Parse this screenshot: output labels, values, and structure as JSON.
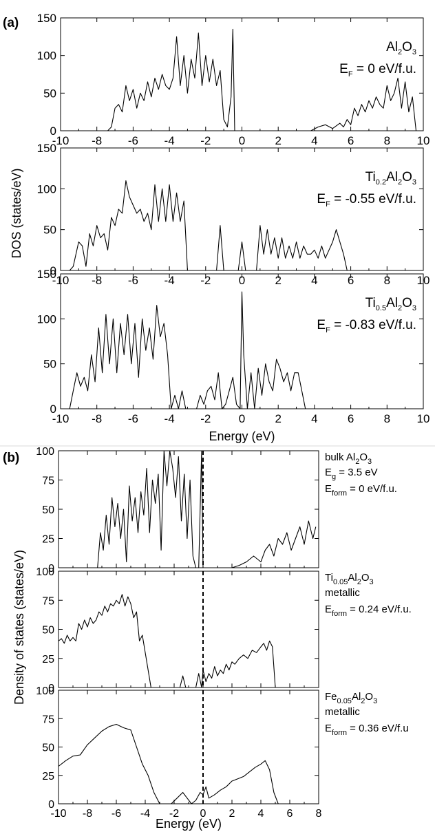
{
  "labels": {
    "panel_a": "(a)",
    "panel_b": "(b)"
  },
  "chart_data": [
    {
      "type": "line",
      "ylabel": "DOS (states/eV)",
      "xlabel": "Energy (eV)",
      "xlim": [
        -10,
        10
      ],
      "ylim": [
        0,
        150
      ],
      "xticks": [
        "-10",
        "-8",
        "-6",
        "-4",
        "-2",
        "0",
        "2",
        "4",
        "6",
        "8",
        "10"
      ],
      "yticks": [
        "0",
        "50",
        "100",
        "150"
      ],
      "panels": [
        {
          "annotation": [
            {
              "t": "Al"
            },
            {
              "t": "2",
              "s": "sub"
            },
            {
              "t": "O"
            },
            {
              "t": "3",
              "s": "sub"
            }
          ],
          "annotation2": [
            {
              "t": "E"
            },
            {
              "t": "F",
              "s": "sub"
            },
            {
              "t": " = 0 eV/f.u."
            }
          ],
          "x": [
            -7.4,
            -7.2,
            -7.0,
            -6.8,
            -6.6,
            -6.4,
            -6.2,
            -6.0,
            -5.8,
            -5.6,
            -5.4,
            -5.2,
            -5.0,
            -4.8,
            -4.6,
            -4.4,
            -4.2,
            -4.0,
            -3.8,
            -3.6,
            -3.4,
            -3.2,
            -3.0,
            -2.8,
            -2.6,
            -2.4,
            -2.2,
            -2.0,
            -1.8,
            -1.6,
            -1.4,
            -1.2,
            -1.0,
            -0.8,
            -0.6,
            -0.5,
            -0.4,
            -0.3,
            3.8,
            4.2,
            4.6,
            5.0,
            5.4,
            5.6,
            5.8,
            6.0,
            6.2,
            6.4,
            6.6,
            6.8,
            7.0,
            7.2,
            7.4,
            7.6,
            7.8,
            8.0,
            8.2,
            8.4,
            8.6,
            8.8,
            9.0,
            9.2,
            9.4,
            9.6
          ],
          "y": [
            0,
            5,
            30,
            35,
            25,
            60,
            40,
            55,
            30,
            50,
            40,
            65,
            45,
            70,
            55,
            75,
            60,
            55,
            70,
            125,
            60,
            100,
            50,
            95,
            70,
            130,
            60,
            100,
            65,
            95,
            60,
            80,
            15,
            5,
            45,
            135,
            0,
            0,
            0,
            5,
            8,
            3,
            10,
            5,
            15,
            8,
            30,
            20,
            35,
            25,
            40,
            30,
            45,
            35,
            30,
            60,
            40,
            50,
            70,
            30,
            65,
            25,
            45,
            0
          ]
        },
        {
          "annotation": [
            {
              "t": "Ti"
            },
            {
              "t": "0.2",
              "s": "sub"
            },
            {
              "t": "Al"
            },
            {
              "t": "2",
              "s": "sub"
            },
            {
              "t": "O"
            },
            {
              "t": "3",
              "s": "sub"
            }
          ],
          "annotation2": [
            {
              "t": "E"
            },
            {
              "t": "F",
              "s": "sub"
            },
            {
              "t": " = -0.55 eV/f.u."
            }
          ],
          "x": [
            -9.5,
            -9.3,
            -9.0,
            -8.8,
            -8.6,
            -8.4,
            -8.2,
            -8.0,
            -7.8,
            -7.6,
            -7.4,
            -7.2,
            -7.0,
            -6.8,
            -6.6,
            -6.4,
            -6.2,
            -6.0,
            -5.8,
            -5.6,
            -5.4,
            -5.2,
            -5.0,
            -4.8,
            -4.6,
            -4.4,
            -4.2,
            -4.0,
            -3.8,
            -3.6,
            -3.4,
            -3.2,
            -3.0,
            -2.8,
            -1.4,
            -1.2,
            -1.0,
            -0.2,
            0.0,
            0.2,
            0.8,
            1.0,
            1.2,
            1.4,
            1.6,
            1.8,
            2.0,
            2.2,
            2.4,
            2.6,
            2.8,
            3.0,
            3.2,
            3.4,
            3.6,
            3.8,
            4.0,
            4.2,
            4.4,
            4.6,
            4.8,
            5.0,
            5.2,
            5.4,
            5.6,
            5.8,
            6.0
          ],
          "y": [
            0,
            5,
            35,
            30,
            5,
            45,
            30,
            55,
            40,
            45,
            25,
            65,
            55,
            75,
            70,
            110,
            90,
            80,
            70,
            75,
            60,
            70,
            50,
            105,
            60,
            100,
            60,
            105,
            60,
            95,
            60,
            85,
            0,
            0,
            0,
            55,
            0,
            0,
            35,
            0,
            0,
            55,
            20,
            50,
            20,
            40,
            15,
            40,
            15,
            30,
            15,
            35,
            15,
            30,
            20,
            20,
            25,
            15,
            30,
            15,
            25,
            35,
            50,
            35,
            20,
            0,
            0
          ]
        },
        {
          "annotation": [
            {
              "t": "Ti"
            },
            {
              "t": "0.5",
              "s": "sub"
            },
            {
              "t": "Al"
            },
            {
              "t": "2",
              "s": "sub"
            },
            {
              "t": "O"
            },
            {
              "t": "3",
              "s": "sub"
            }
          ],
          "annotation2": [
            {
              "t": "E"
            },
            {
              "t": "F",
              "s": "sub"
            },
            {
              "t": " = -0.83 eV/f.u."
            }
          ],
          "x": [
            -9.7,
            -9.5,
            -9.3,
            -9.1,
            -8.9,
            -8.7,
            -8.5,
            -8.3,
            -8.1,
            -7.9,
            -7.7,
            -7.5,
            -7.3,
            -7.1,
            -6.9,
            -6.7,
            -6.5,
            -6.3,
            -6.1,
            -5.9,
            -5.7,
            -5.5,
            -5.3,
            -5.1,
            -4.9,
            -4.7,
            -4.5,
            -4.3,
            -4.1,
            -3.9,
            -3.7,
            -3.5,
            -3.3,
            -3.1,
            -2.9,
            -2.5,
            -2.3,
            -2.1,
            -1.9,
            -1.7,
            -1.5,
            -1.3,
            -1.1,
            -0.9,
            -0.5,
            -0.3,
            -0.1,
            0.0,
            0.1,
            0.3,
            0.5,
            0.7,
            0.9,
            1.1,
            1.3,
            1.5,
            1.7,
            1.9,
            2.1,
            2.3,
            2.5,
            2.7,
            2.9,
            3.1,
            3.3,
            3.5,
            3.7,
            3.9,
            5.5
          ],
          "y": [
            0,
            0,
            20,
            40,
            25,
            35,
            20,
            60,
            30,
            90,
            40,
            105,
            50,
            100,
            40,
            95,
            60,
            105,
            50,
            95,
            35,
            100,
            65,
            90,
            55,
            115,
            80,
            95,
            60,
            0,
            15,
            0,
            20,
            0,
            0,
            0,
            15,
            5,
            20,
            25,
            10,
            40,
            0,
            5,
            35,
            5,
            0,
            130,
            60,
            0,
            40,
            0,
            45,
            15,
            50,
            30,
            20,
            55,
            45,
            30,
            40,
            20,
            40,
            40,
            20,
            0,
            0,
            0,
            0
          ]
        }
      ]
    },
    {
      "type": "line",
      "ylabel": "Density of states (states/eV)",
      "xlabel": "Energy (eV)",
      "xlim": [
        -10,
        8
      ],
      "ylim": [
        0,
        100
      ],
      "xticks": [
        "-10",
        "-8",
        "-6",
        "-4",
        "-2",
        "0",
        "2",
        "4",
        "6",
        "8"
      ],
      "yticks": [
        "0",
        "25",
        "50",
        "75",
        "100"
      ],
      "panels": [
        {
          "annotation": [
            {
              "t": "bulk Al"
            },
            {
              "t": "2",
              "s": "sub"
            },
            {
              "t": "O"
            },
            {
              "t": "3",
              "s": "sub"
            }
          ],
          "annotation2": [
            {
              "t": "E"
            },
            {
              "t": "g",
              "s": "sub"
            },
            {
              "t": " = 3.5 eV"
            }
          ],
          "annotation3": [
            {
              "t": "E"
            },
            {
              "t": "form",
              "s": "sub"
            },
            {
              "t": " = 0 eV/f.u."
            }
          ],
          "x": [
            -7.3,
            -7.1,
            -6.9,
            -6.7,
            -6.5,
            -6.3,
            -6.1,
            -5.9,
            -5.7,
            -5.5,
            -5.3,
            -5.1,
            -4.9,
            -4.7,
            -4.5,
            -4.3,
            -4.1,
            -3.9,
            -3.7,
            -3.5,
            -3.3,
            -3.1,
            -2.9,
            -2.7,
            -2.5,
            -2.3,
            -2.1,
            -1.9,
            -1.7,
            -1.5,
            -1.3,
            -1.1,
            -0.9,
            -0.7,
            -0.5,
            -0.3,
            -0.1,
            0.0,
            2.0,
            2.5,
            3.0,
            3.5,
            4.0,
            4.3,
            4.6,
            4.9,
            5.2,
            5.5,
            5.8,
            6.1,
            6.4,
            6.7,
            7.0,
            7.3,
            7.6,
            7.8
          ],
          "y": [
            0,
            30,
            15,
            45,
            20,
            60,
            35,
            55,
            25,
            50,
            5,
            70,
            40,
            60,
            30,
            65,
            45,
            85,
            30,
            75,
            55,
            80,
            15,
            100,
            70,
            100,
            85,
            60,
            95,
            40,
            80,
            25,
            75,
            10,
            0,
            0,
            100,
            0,
            0,
            2,
            5,
            10,
            5,
            15,
            20,
            10,
            25,
            20,
            30,
            15,
            25,
            35,
            20,
            40,
            25,
            35
          ]
        },
        {
          "annotation": [
            {
              "t": "Ti"
            },
            {
              "t": "0.05",
              "s": "sub"
            },
            {
              "t": "Al"
            },
            {
              "t": "2",
              "s": "sub"
            },
            {
              "t": "O"
            },
            {
              "t": "3",
              "s": "sub"
            }
          ],
          "annotation2": [
            {
              "t": "metallic"
            }
          ],
          "annotation3": [
            {
              "t": "E"
            },
            {
              "t": "form",
              "s": "sub"
            },
            {
              "t": " = 0.24 eV/f.u."
            }
          ],
          "x": [
            -10.0,
            -9.8,
            -9.6,
            -9.4,
            -9.2,
            -9.0,
            -8.8,
            -8.6,
            -8.4,
            -8.2,
            -8.0,
            -7.8,
            -7.6,
            -7.4,
            -7.2,
            -7.0,
            -6.8,
            -6.6,
            -6.4,
            -6.2,
            -6.0,
            -5.8,
            -5.6,
            -5.4,
            -5.2,
            -5.0,
            -4.8,
            -4.6,
            -4.4,
            -4.2,
            -4.0,
            -3.8,
            -3.6,
            -3.4,
            -1.6,
            -1.4,
            -1.2,
            -0.5,
            -0.3,
            -0.1,
            0.0,
            0.2,
            0.4,
            0.6,
            0.8,
            1.0,
            1.2,
            1.4,
            1.6,
            1.8,
            2.0,
            2.2,
            2.5,
            2.8,
            3.1,
            3.4,
            3.7,
            4.0,
            4.2,
            4.4,
            4.6,
            4.8,
            5.0
          ],
          "y": [
            40,
            42,
            38,
            45,
            40,
            43,
            40,
            55,
            50,
            58,
            52,
            60,
            55,
            58,
            65,
            62,
            70,
            65,
            72,
            70,
            75,
            72,
            80,
            70,
            78,
            72,
            60,
            65,
            40,
            45,
            30,
            15,
            0,
            0,
            0,
            10,
            0,
            0,
            12,
            0,
            15,
            5,
            12,
            8,
            18,
            10,
            15,
            12,
            20,
            15,
            22,
            20,
            25,
            28,
            25,
            32,
            30,
            35,
            38,
            32,
            40,
            35,
            0
          ]
        },
        {
          "annotation": [
            {
              "t": "Fe"
            },
            {
              "t": "0.05",
              "s": "sub"
            },
            {
              "t": "Al"
            },
            {
              "t": "2",
              "s": "sub"
            },
            {
              "t": "O"
            },
            {
              "t": "3",
              "s": "sub"
            }
          ],
          "annotation2": [
            {
              "t": "metallic"
            }
          ],
          "annotation3": [
            {
              "t": "E"
            },
            {
              "t": "form",
              "s": "sub"
            },
            {
              "t": " = 0.36 eV/f.u"
            }
          ],
          "x": [
            -10.0,
            -9.5,
            -9.0,
            -8.5,
            -8.0,
            -7.5,
            -7.0,
            -6.5,
            -6.0,
            -5.5,
            -5.0,
            -4.6,
            -4.2,
            -3.8,
            -3.4,
            -3.0,
            -2.6,
            -2.2,
            -1.8,
            -1.4,
            -1.1,
            -0.8,
            -0.5,
            -0.2,
            0.0,
            0.2,
            0.4,
            0.8,
            1.2,
            1.6,
            2.0,
            2.4,
            2.8,
            3.2,
            3.6,
            4.0,
            4.3,
            4.6,
            4.9,
            5.2
          ],
          "y": [
            33,
            38,
            42,
            43,
            52,
            58,
            64,
            68,
            70,
            67,
            65,
            50,
            35,
            25,
            10,
            0,
            0,
            0,
            5,
            10,
            5,
            0,
            3,
            10,
            8,
            15,
            5,
            8,
            12,
            15,
            20,
            22,
            24,
            28,
            32,
            35,
            38,
            30,
            10,
            0
          ]
        }
      ]
    }
  ]
}
